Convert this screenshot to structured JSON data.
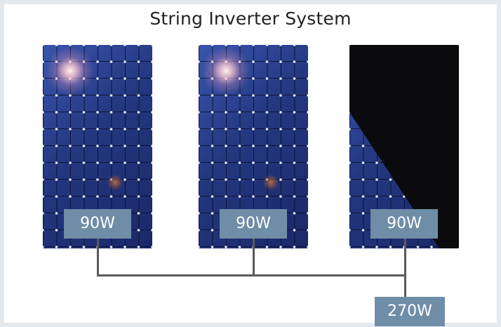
{
  "diagram": {
    "title": "String Inverter System",
    "panels": [
      {
        "label": "90W",
        "shaded": false
      },
      {
        "label": "90W",
        "shaded": false
      },
      {
        "label": "90W",
        "shaded": true
      }
    ],
    "total_label": "270W",
    "colors": {
      "label_box": "#6f8da7",
      "panel_blue": "#1f2e6e",
      "shade": "#0b0b0d",
      "wire": "#5a5a5a",
      "background": "#e4e9ef"
    }
  }
}
